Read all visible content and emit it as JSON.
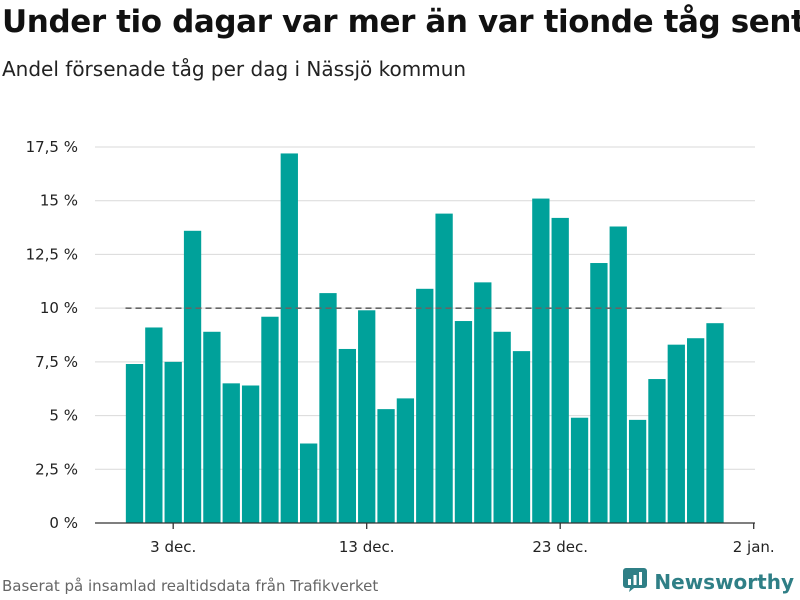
{
  "header": {
    "title": "Under tio dagar var mer än var tionde tåg sent",
    "subtitle": "Andel försenade tåg per dag i Nässjö kommun"
  },
  "footer": {
    "source": "Baserat på insamlad realtidsdata från Trafikverket",
    "brand": "Newsworthy"
  },
  "colors": {
    "bar": "#00a19a",
    "reference_line": "#666666",
    "grid": "#d9d9d9",
    "brand": "#2f7f86"
  },
  "chart_data": {
    "type": "bar",
    "title": "Under tio dagar var mer än var tionde tåg sent",
    "subtitle": "Andel försenade tåg per dag i Nässjö kommun",
    "x_start_date": "2020-12-01",
    "categories": [
      "2020-12-01",
      "2020-12-02",
      "2020-12-03",
      "2020-12-04",
      "2020-12-05",
      "2020-12-06",
      "2020-12-07",
      "2020-12-08",
      "2020-12-09",
      "2020-12-10",
      "2020-12-11",
      "2020-12-12",
      "2020-12-13",
      "2020-12-14",
      "2020-12-15",
      "2020-12-16",
      "2020-12-17",
      "2020-12-18",
      "2020-12-19",
      "2020-12-20",
      "2020-12-21",
      "2020-12-22",
      "2020-12-23",
      "2020-12-24",
      "2020-12-25",
      "2020-12-26",
      "2020-12-27",
      "2020-12-28",
      "2020-12-29",
      "2020-12-30",
      "2020-12-31"
    ],
    "values": [
      7.4,
      9.1,
      7.5,
      13.6,
      8.9,
      6.5,
      6.4,
      9.6,
      17.2,
      3.7,
      10.7,
      8.1,
      9.9,
      5.3,
      5.8,
      10.9,
      14.4,
      9.4,
      11.2,
      8.9,
      8.0,
      15.1,
      14.2,
      4.9,
      12.1,
      13.8,
      4.8,
      6.7,
      8.3,
      8.6,
      9.3
    ],
    "reference_line": 10,
    "ylim": [
      0,
      17.5
    ],
    "yticks": [
      0,
      2.5,
      5,
      7.5,
      10,
      12.5,
      15,
      17.5
    ],
    "ytick_labels": [
      "0 %",
      "2,5 %",
      "5 %",
      "7,5 %",
      "10 %",
      "12,5 %",
      "15 %",
      "17,5 %"
    ],
    "xticks": [
      {
        "label": "3 dec.",
        "day_index": 2
      },
      {
        "label": "13 dec.",
        "day_index": 12
      },
      {
        "label": "23 dec.",
        "day_index": 22
      },
      {
        "label": "2 jan.",
        "day_index": 32
      }
    ],
    "xlabel": "",
    "ylabel": "",
    "grid": true,
    "legend": "none"
  }
}
